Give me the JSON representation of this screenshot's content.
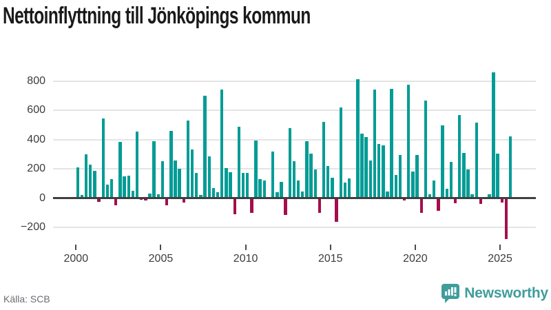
{
  "title": "Nettoinflyttning till Jönköpings kommun",
  "source": "Källa: SCB",
  "brand": {
    "name": "Newsworthy",
    "color": "#3F9D9C",
    "icon": "newsworthy-chart-bubble-icon"
  },
  "colors": {
    "positive_bar": "#009C95",
    "negative_bar": "#A40E4C",
    "grid": "#E4E4E4",
    "zero_line": "#3F3F3F",
    "axis_text": "#3C3C3C",
    "title_text": "#1A1A1A",
    "source_text": "#6B6B73",
    "background": "#FFFFFF"
  },
  "chart_data": {
    "type": "bar",
    "title": "Nettoinflyttning till Jönköpings kommun",
    "xlabel": "",
    "ylabel": "",
    "x_unit": "quarter",
    "start_quarter": "2000 Q1",
    "end_quarter": "2025 Q3",
    "grid": "horizontal",
    "legend": "none",
    "y_ticks": [
      -200,
      0,
      200,
      400,
      600,
      800
    ],
    "x_ticks": [
      2000,
      2005,
      2010,
      2015,
      2020,
      2025
    ],
    "ylim": [
      -350,
      930
    ],
    "positive_color": "#009C95",
    "negative_color": "#A40E4C",
    "x": [
      "2000 Q1",
      "2000 Q2",
      "2000 Q3",
      "2000 Q4",
      "2001 Q1",
      "2001 Q2",
      "2001 Q3",
      "2001 Q4",
      "2002 Q1",
      "2002 Q2",
      "2002 Q3",
      "2002 Q4",
      "2003 Q1",
      "2003 Q2",
      "2003 Q3",
      "2003 Q4",
      "2004 Q1",
      "2004 Q2",
      "2004 Q3",
      "2004 Q4",
      "2005 Q1",
      "2005 Q2",
      "2005 Q3",
      "2005 Q4",
      "2006 Q1",
      "2006 Q2",
      "2006 Q3",
      "2006 Q4",
      "2007 Q1",
      "2007 Q2",
      "2007 Q3",
      "2007 Q4",
      "2008 Q1",
      "2008 Q2",
      "2008 Q3",
      "2008 Q4",
      "2009 Q1",
      "2009 Q2",
      "2009 Q3",
      "2009 Q4",
      "2010 Q1",
      "2010 Q2",
      "2010 Q3",
      "2010 Q4",
      "2011 Q1",
      "2011 Q2",
      "2011 Q3",
      "2011 Q4",
      "2012 Q1",
      "2012 Q2",
      "2012 Q3",
      "2012 Q4",
      "2013 Q1",
      "2013 Q2",
      "2013 Q3",
      "2013 Q4",
      "2014 Q1",
      "2014 Q2",
      "2014 Q3",
      "2014 Q4",
      "2015 Q1",
      "2015 Q2",
      "2015 Q3",
      "2015 Q4",
      "2016 Q1",
      "2016 Q2",
      "2016 Q3",
      "2016 Q4",
      "2017 Q1",
      "2017 Q2",
      "2017 Q3",
      "2017 Q4",
      "2018 Q1",
      "2018 Q2",
      "2018 Q3",
      "2018 Q4",
      "2019 Q1",
      "2019 Q2",
      "2019 Q3",
      "2019 Q4",
      "2020 Q1",
      "2020 Q2",
      "2020 Q3",
      "2020 Q4",
      "2021 Q1",
      "2021 Q2",
      "2021 Q3",
      "2021 Q4",
      "2022 Q1",
      "2022 Q2",
      "2022 Q3",
      "2022 Q4",
      "2023 Q1",
      "2023 Q2",
      "2023 Q3",
      "2023 Q4",
      "2024 Q1",
      "2024 Q2",
      "2024 Q3",
      "2024 Q4",
      "2025 Q1",
      "2025 Q2",
      "2025 Q3"
    ],
    "values": [
      210,
      20,
      300,
      230,
      185,
      -25,
      545,
      90,
      130,
      -50,
      385,
      150,
      155,
      50,
      455,
      -10,
      -15,
      30,
      390,
      25,
      250,
      -50,
      460,
      255,
      200,
      -30,
      530,
      330,
      170,
      20,
      700,
      285,
      70,
      40,
      740,
      205,
      175,
      -110,
      485,
      170,
      170,
      -100,
      395,
      130,
      120,
      0,
      320,
      40,
      110,
      -115,
      480,
      250,
      120,
      45,
      390,
      305,
      195,
      -100,
      520,
      220,
      140,
      -160,
      620,
      105,
      135,
      0,
      810,
      440,
      415,
      255,
      740,
      370,
      360,
      45,
      745,
      160,
      295,
      -15,
      775,
      180,
      295,
      -100,
      665,
      25,
      120,
      -85,
      495,
      65,
      245,
      -35,
      565,
      310,
      195,
      25,
      515,
      -40,
      5,
      25,
      860,
      305,
      -30,
      -280,
      420
    ]
  }
}
